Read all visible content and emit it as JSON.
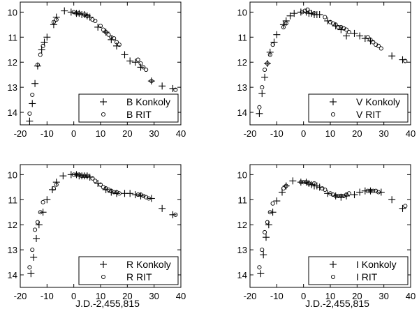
{
  "chart_data": [
    {
      "type": "scatter",
      "band": "B",
      "xlim": [
        -20,
        40
      ],
      "ylim": [
        14.5,
        9.6
      ],
      "y_inverted": true,
      "xticks": [
        -20,
        -10,
        0,
        10,
        20,
        30,
        40
      ],
      "yticks": [
        10,
        11,
        12,
        13,
        14
      ],
      "xlabel": "",
      "legend_position": "bottom-right",
      "series": [
        {
          "name": "B Konkoly",
          "marker": "plus",
          "x": [
            -16.5,
            -15.5,
            -14.5,
            -13.5,
            -12,
            -11,
            -10,
            -7.5,
            -6.5,
            -3.5,
            -1,
            1,
            2,
            3,
            4,
            5,
            6,
            9,
            12,
            14,
            16,
            19,
            21,
            23,
            25,
            29,
            33,
            37
          ],
          "y": [
            14.35,
            13.65,
            12.85,
            12.15,
            11.5,
            11.2,
            11.0,
            10.5,
            10.2,
            9.95,
            10.0,
            10.05,
            10.05,
            10.1,
            10.1,
            10.15,
            10.2,
            10.6,
            10.8,
            11.1,
            11.35,
            11.7,
            11.95,
            12.0,
            12.2,
            12.75,
            12.95,
            13.05
          ]
        },
        {
          "name": "B RIT",
          "marker": "circle",
          "x": [
            -16.5,
            -15.5,
            -13.5,
            -12.5,
            -11.5,
            -7.5,
            -6.5,
            0,
            1,
            2,
            4,
            5,
            7,
            8,
            10,
            11,
            12,
            13,
            14,
            15,
            16,
            17,
            24,
            25,
            26,
            27,
            29,
            38
          ],
          "y": [
            14.05,
            13.3,
            12.1,
            11.7,
            11.35,
            10.4,
            10.3,
            10.0,
            10.05,
            10.05,
            10.1,
            10.15,
            10.3,
            10.35,
            10.55,
            10.7,
            10.8,
            10.9,
            11.0,
            11.05,
            11.2,
            11.3,
            11.9,
            12.05,
            12.2,
            12.3,
            12.75,
            13.1
          ]
        }
      ]
    },
    {
      "type": "scatter",
      "band": "V",
      "xlim": [
        -20,
        40
      ],
      "ylim": [
        14.5,
        9.6
      ],
      "y_inverted": true,
      "xticks": [
        -20,
        -10,
        0,
        10,
        20,
        30,
        40
      ],
      "yticks": [
        10,
        11,
        12,
        13,
        14
      ],
      "xlabel": "",
      "legend_position": "bottom-right",
      "series": [
        {
          "name": "V Konkoly",
          "marker": "plus",
          "x": [
            -16.5,
            -15.5,
            -14.5,
            -13.5,
            -12.5,
            -11,
            -10,
            -7.5,
            -6.5,
            -5,
            -3.5,
            -1,
            1,
            2,
            3,
            4,
            5,
            6,
            9,
            12,
            14,
            16,
            19,
            21,
            23,
            25,
            33,
            37
          ],
          "y": [
            14.05,
            13.25,
            12.6,
            12.05,
            11.6,
            11.2,
            10.9,
            10.5,
            10.35,
            10.15,
            10.05,
            10.0,
            10.0,
            10.05,
            10.05,
            10.1,
            10.1,
            10.1,
            10.35,
            10.55,
            10.7,
            10.95,
            10.85,
            10.95,
            11.05,
            11.15,
            11.75,
            11.9
          ]
        },
        {
          "name": "V RIT",
          "marker": "circle",
          "x": [
            -16.5,
            -15.5,
            -14.5,
            -13.5,
            -12.5,
            -11.5,
            -7.5,
            -6.5,
            -0.5,
            0.5,
            1.5,
            2.5,
            4,
            8,
            10,
            11,
            12,
            13,
            14,
            15,
            16,
            17,
            24,
            25,
            26,
            27,
            28,
            29,
            38
          ],
          "y": [
            13.8,
            13.0,
            12.3,
            12.05,
            11.7,
            11.3,
            10.6,
            10.45,
            10.0,
            9.95,
            9.9,
            10.0,
            10.05,
            10.2,
            10.4,
            10.45,
            10.5,
            10.6,
            10.6,
            10.65,
            10.7,
            10.8,
            11.0,
            11.1,
            11.2,
            11.3,
            11.35,
            11.45,
            11.95
          ]
        }
      ]
    },
    {
      "type": "scatter",
      "band": "R",
      "xlim": [
        -20,
        40
      ],
      "ylim": [
        14.5,
        9.6
      ],
      "y_inverted": true,
      "xticks": [
        -20,
        -10,
        0,
        10,
        20,
        30,
        40
      ],
      "yticks": [
        10,
        11,
        12,
        13,
        14
      ],
      "xlabel": "J.D.-2,455,815",
      "legend_position": "bottom-right",
      "series": [
        {
          "name": "R Konkoly",
          "marker": "plus",
          "x": [
            -16,
            -15,
            -14,
            -13,
            -11.5,
            -10,
            -8,
            -6.5,
            -4,
            -1,
            1,
            2,
            3,
            4,
            5,
            6,
            9,
            12,
            14,
            16,
            19,
            21,
            23,
            25,
            29,
            33,
            37
          ],
          "y": [
            13.95,
            13.3,
            12.55,
            12.0,
            11.5,
            11.0,
            10.6,
            10.3,
            10.05,
            10.0,
            10.0,
            10.05,
            10.05,
            10.05,
            10.05,
            10.1,
            10.35,
            10.6,
            10.7,
            10.75,
            10.75,
            10.75,
            10.8,
            10.85,
            10.95,
            11.35,
            11.6
          ]
        },
        {
          "name": "R RIT",
          "marker": "circle",
          "x": [
            -16.5,
            -15.5,
            -14.5,
            -13.5,
            -12.5,
            -11.5,
            -7.5,
            -6.5,
            0,
            1,
            2,
            3,
            4,
            5,
            7,
            8,
            10,
            11,
            12,
            13,
            14,
            15,
            16,
            17,
            24,
            25,
            26,
            27,
            28,
            38
          ],
          "y": [
            13.7,
            13.0,
            12.2,
            11.9,
            11.5,
            11.1,
            10.55,
            10.4,
            10.0,
            10.0,
            10.0,
            10.05,
            10.05,
            10.05,
            10.15,
            10.25,
            10.4,
            10.5,
            10.55,
            10.6,
            10.65,
            10.7,
            10.7,
            10.75,
            10.8,
            10.8,
            10.85,
            10.9,
            10.95,
            11.6
          ]
        }
      ]
    },
    {
      "type": "scatter",
      "band": "I",
      "xlim": [
        -20,
        40
      ],
      "ylim": [
        14.5,
        9.6
      ],
      "y_inverted": true,
      "xticks": [
        -20,
        -10,
        0,
        10,
        20,
        30,
        40
      ],
      "yticks": [
        10,
        11,
        12,
        13,
        14
      ],
      "xlabel": "J.D.-2,455,815",
      "legend_position": "bottom-right",
      "series": [
        {
          "name": "I Konkoly",
          "marker": "plus",
          "x": [
            -16,
            -15,
            -14,
            -13,
            -11.5,
            -10,
            -8,
            -6.5,
            -4,
            -1,
            1,
            2,
            3,
            4,
            5,
            6,
            9,
            12,
            14,
            16,
            19,
            21,
            23,
            25,
            29,
            33,
            37
          ],
          "y": [
            13.95,
            13.2,
            12.5,
            12.0,
            11.5,
            11.05,
            10.7,
            10.45,
            10.25,
            10.3,
            10.3,
            10.35,
            10.4,
            10.45,
            10.45,
            10.5,
            10.75,
            10.85,
            10.9,
            10.85,
            10.8,
            10.7,
            10.65,
            10.65,
            10.7,
            11.0,
            11.35
          ]
        },
        {
          "name": "I RIT",
          "marker": "circle",
          "x": [
            -16.5,
            -15.5,
            -14.5,
            -13.5,
            -12.5,
            -11.5,
            -7.5,
            -6.5,
            -1,
            0,
            1,
            2,
            4,
            7,
            8,
            10,
            11,
            12,
            13,
            14,
            15,
            16,
            17,
            24,
            25,
            26,
            27,
            28,
            38
          ],
          "y": [
            13.7,
            13.0,
            12.3,
            11.9,
            11.5,
            11.15,
            10.55,
            10.45,
            10.3,
            10.3,
            10.3,
            10.35,
            10.35,
            10.55,
            10.6,
            10.75,
            10.8,
            10.85,
            10.85,
            10.85,
            10.85,
            10.8,
            10.75,
            10.65,
            10.65,
            10.65,
            10.65,
            10.7,
            11.25
          ]
        }
      ]
    }
  ]
}
